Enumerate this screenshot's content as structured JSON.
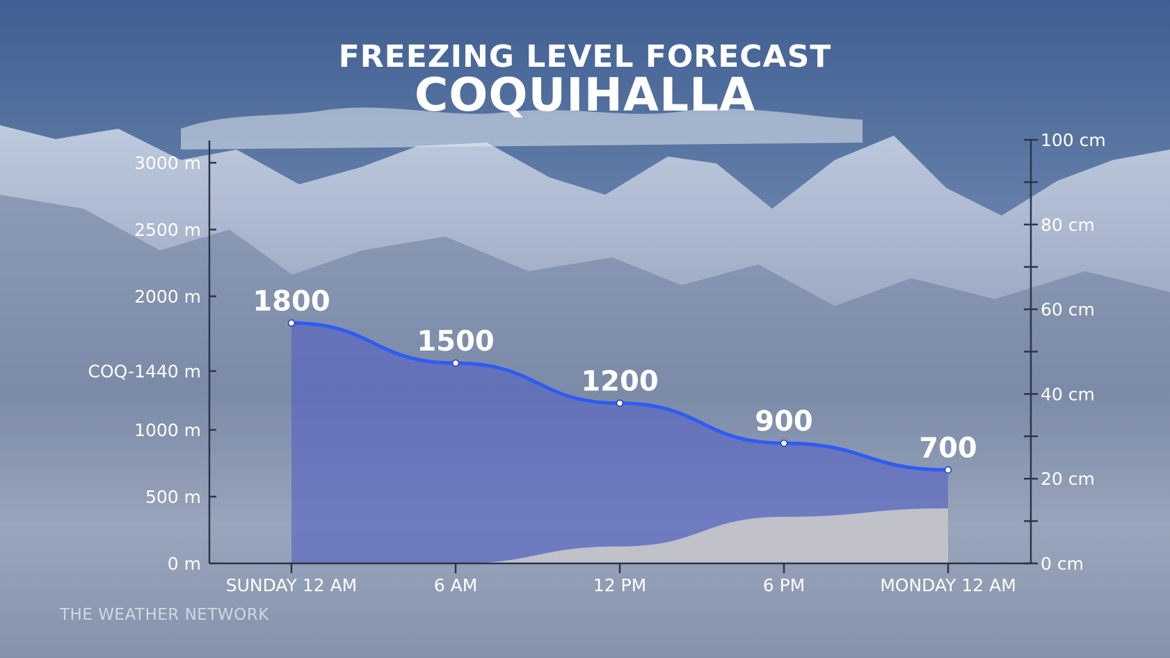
{
  "chart_data": {
    "type": "line",
    "title": "FREEZING LEVEL FORECAST",
    "subtitle": "COQUIHALLA",
    "categories": [
      "SUNDAY 12 AM",
      "6 AM",
      "12 PM",
      "6 PM",
      "MONDAY 12 AM"
    ],
    "freezing_level": {
      "unit": "m",
      "values": [
        1800,
        1500,
        1200,
        900,
        700
      ],
      "value_labels": [
        "1800",
        "1500",
        "1200",
        "900",
        "700"
      ],
      "color": "#2f5bf5"
    },
    "snow_accumulation": {
      "unit": "cm",
      "values": [
        0,
        0,
        4,
        11,
        13
      ],
      "color": "#c7c7ca"
    },
    "y_left": {
      "range": [
        0,
        3200
      ],
      "ticks": [
        {
          "value": 0,
          "label": "0 m"
        },
        {
          "value": 500,
          "label": "500 m"
        },
        {
          "value": 1000,
          "label": "1000 m"
        },
        {
          "value": 1440,
          "label": "COQ-1440 m"
        },
        {
          "value": 2000,
          "label": "2000 m"
        },
        {
          "value": 2500,
          "label": "2500 m"
        },
        {
          "value": 3000,
          "label": "3000 m"
        }
      ]
    },
    "y_right": {
      "range": [
        0,
        100
      ],
      "ticks": [
        {
          "value": 0,
          "label": "0 cm"
        },
        {
          "value": 20,
          "label": "20 cm"
        },
        {
          "value": 40,
          "label": "40 cm"
        },
        {
          "value": 60,
          "label": "60 cm"
        },
        {
          "value": 80,
          "label": "80 cm"
        },
        {
          "value": 100,
          "label": "100 cm"
        }
      ],
      "minor_ticks": [
        10,
        30,
        50,
        70,
        90
      ]
    },
    "grid": false,
    "legend": "none"
  },
  "brand": "THE WEATHER NETWORK"
}
